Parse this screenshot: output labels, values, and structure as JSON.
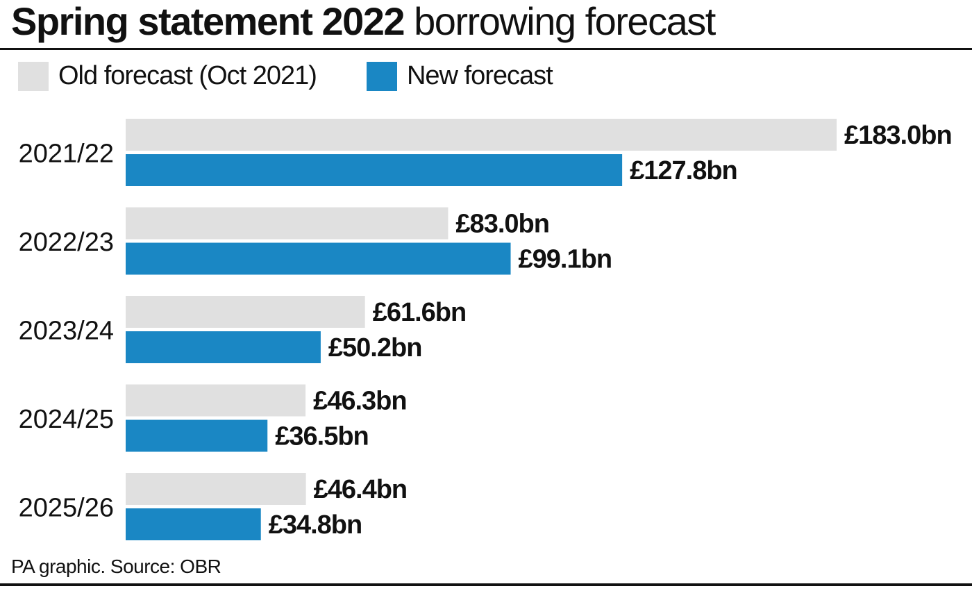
{
  "header": {
    "title_bold": "Spring statement 2022",
    "title_light": "borrowing forecast"
  },
  "legend": [
    {
      "label": "Old forecast (Oct 2021)",
      "color": "#e0e0e0"
    },
    {
      "label": "New forecast",
      "color": "#1a87c4"
    }
  ],
  "footer": {
    "source": "PA graphic. Source: OBR"
  },
  "chart_data": {
    "type": "bar",
    "orientation": "horizontal",
    "title": "Spring statement 2022 borrowing forecast",
    "categories": [
      "2021/22",
      "2022/23",
      "2023/24",
      "2024/25",
      "2025/26"
    ],
    "series": [
      {
        "name": "Old forecast (Oct 2021)",
        "color": "#e0e0e0",
        "values": [
          183.0,
          83.0,
          61.6,
          46.3,
          46.4
        ],
        "labels": [
          "£183.0bn",
          "£83.0bn",
          "£61.6bn",
          "£46.3bn",
          "£46.4bn"
        ]
      },
      {
        "name": "New forecast",
        "color": "#1a87c4",
        "values": [
          127.8,
          99.1,
          50.2,
          36.5,
          34.8
        ],
        "labels": [
          "£127.8bn",
          "£99.1bn",
          "£50.2bn",
          "£36.5bn",
          "£34.8bn"
        ]
      }
    ],
    "unit": "£bn",
    "xlim": [
      0,
      183.0
    ],
    "grid": false,
    "legend_position": "top-left"
  }
}
